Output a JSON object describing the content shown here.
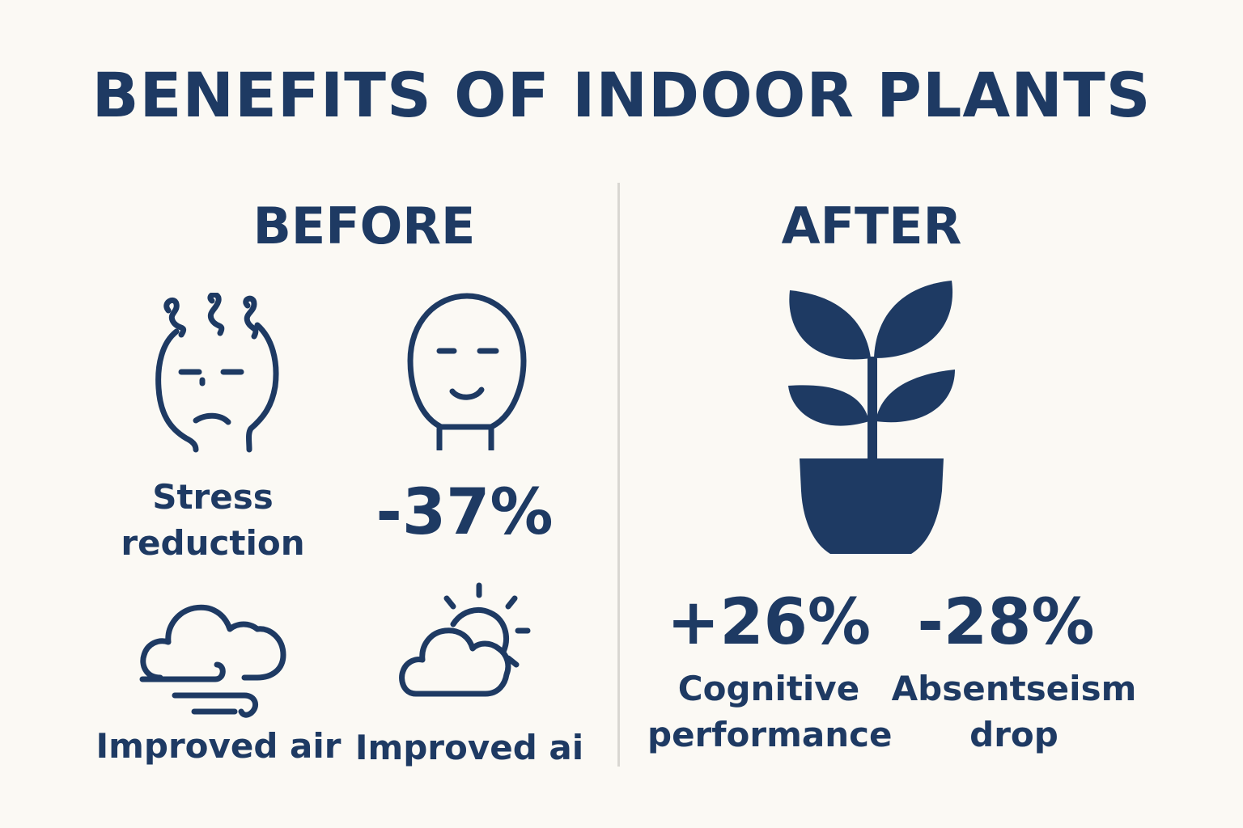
{
  "title": "BENEFITS OF INDOOR PLANTS",
  "colors": {
    "primary": "#1e3a63",
    "background": "#fbf9f4",
    "divider": "#d9d7d2"
  },
  "before": {
    "heading": "BEFORE",
    "items": [
      {
        "icon": "stressed-face-icon",
        "label_line1": "Stress",
        "label_line2": "reduction"
      },
      {
        "icon": "calm-face-icon",
        "value": "-37%"
      },
      {
        "icon": "windy-cloud-icon",
        "label": "Improved air"
      },
      {
        "icon": "sun-cloud-icon",
        "label": "Improved ai"
      }
    ]
  },
  "after": {
    "heading": "AFTER",
    "icon": "potted-plant-icon",
    "stats": [
      {
        "value": "+26%",
        "label_line1": "Cognitive",
        "label_line2": "performance"
      },
      {
        "value": "-28%",
        "label_line1": "Absentseism",
        "label_line2": "drop"
      }
    ]
  }
}
